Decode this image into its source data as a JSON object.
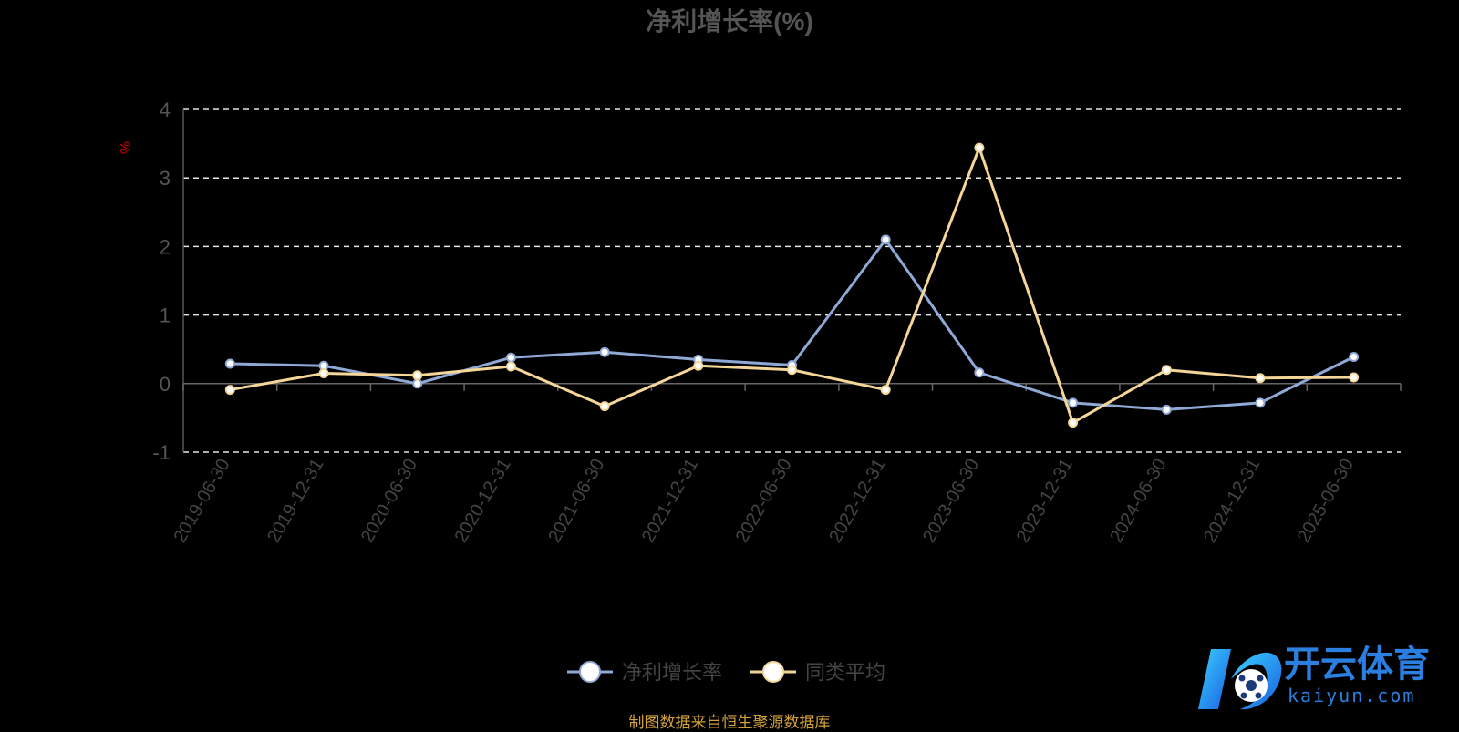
{
  "chart_data": {
    "type": "line",
    "title": "净利增长率(%)",
    "ylabel": "%",
    "ylim": [
      -1,
      4
    ],
    "yticks": [
      4,
      3,
      2,
      1,
      0,
      -1
    ],
    "grid": true,
    "categories": [
      "2019-06-30",
      "2019-12-31",
      "2020-06-30",
      "2020-12-31",
      "2021-06-30",
      "2021-12-31",
      "2022-06-30",
      "2022-12-31",
      "2023-06-30",
      "2023-12-31",
      "2024-06-30",
      "2024-12-31",
      "2025-06-30"
    ],
    "series": [
      {
        "name": "净利增长率",
        "color": "#8fa9d6",
        "values": [
          0.29,
          0.26,
          0.0,
          0.38,
          0.46,
          0.35,
          0.27,
          2.1,
          0.16,
          -0.28,
          -0.38,
          -0.28,
          0.39
        ]
      },
      {
        "name": "同类平均",
        "color": "#f5d699",
        "values": [
          -0.09,
          0.15,
          0.12,
          0.25,
          -0.33,
          0.26,
          0.2,
          -0.09,
          3.44,
          -0.57,
          0.2,
          0.08,
          0.09
        ]
      }
    ],
    "legend_position": "bottom-center"
  },
  "footer_text": "制图数据来自恒生聚源数据库",
  "logo": {
    "name": "开云体育",
    "domain": "kaiyun.com"
  }
}
